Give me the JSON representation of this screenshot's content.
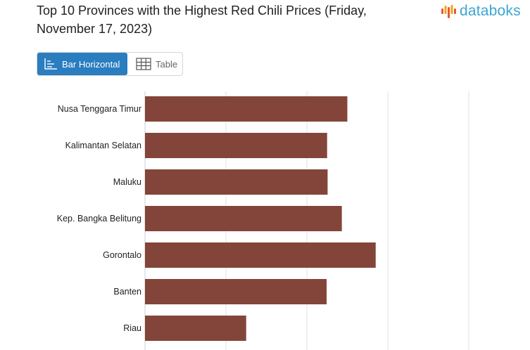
{
  "header": {
    "title": "Top 10 Provinces with the Highest Red Chili Prices (Friday, November 17, 2023)",
    "logo_text": "databoks",
    "brand_color": "#3aa6d3",
    "logo_icon_colors": [
      "#e7592a",
      "#f3a21a",
      "#e7592a",
      "#f3a21a",
      "#e7592a"
    ]
  },
  "view_toggle": {
    "bar_label": "Bar Horizontal",
    "bar_icon": "bar-chart-icon",
    "table_label": "Table",
    "table_icon": "table-grid-icon",
    "active": "Bar Horizontal",
    "active_color": "#2a7dbf"
  },
  "chart_data": {
    "type": "bar",
    "orientation": "horizontal",
    "categories": [
      "Nusa Tenggara Timur",
      "Kalimantan Selatan",
      "Maluku",
      "Kep. Bangka Belitung",
      "Gorontalo",
      "Banten",
      "Riau"
    ],
    "values": [
      62500,
      56250,
      56400,
      60800,
      71250,
      56100,
      31250
    ],
    "xlim": [
      0,
      100000
    ],
    "grid": true,
    "bar_color": "#834539",
    "xlabel": "",
    "ylabel": ""
  }
}
